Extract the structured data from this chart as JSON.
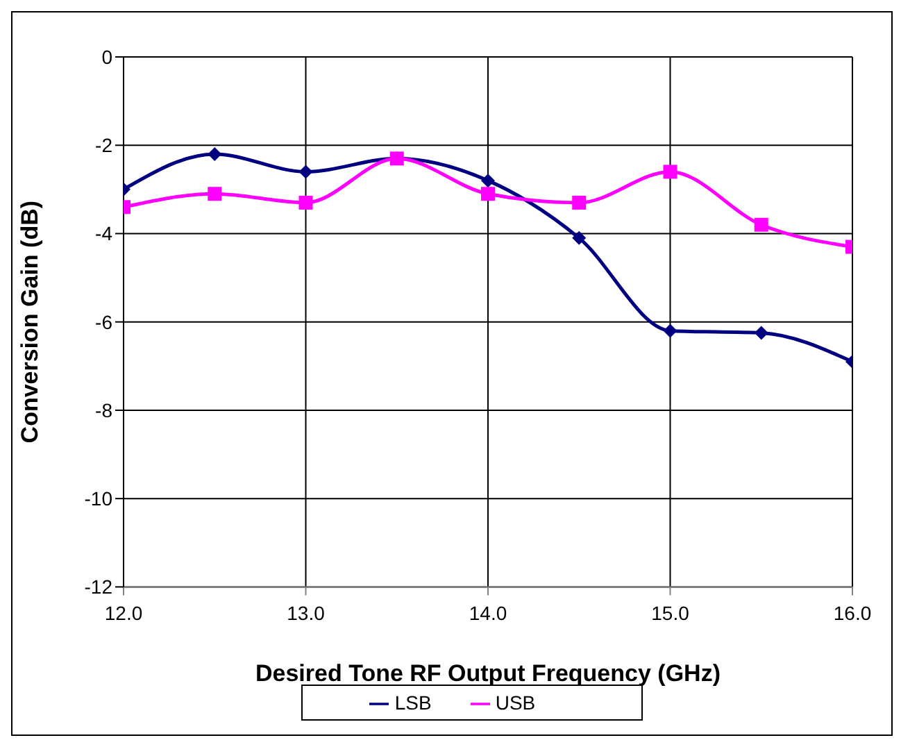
{
  "chart_data": {
    "type": "line",
    "xlabel": "Desired Tone RF Output Frequency (GHz)",
    "ylabel": "Conversion Gain (dB)",
    "x": [
      12.0,
      12.5,
      13.0,
      13.5,
      14.0,
      14.5,
      15.0,
      15.5,
      16.0
    ],
    "series": [
      {
        "name": "LSB",
        "color": "#000080",
        "marker": "diamond",
        "values": [
          -3.0,
          -2.2,
          -2.6,
          -2.3,
          -2.8,
          -4.1,
          -6.2,
          -6.25,
          -6.9
        ]
      },
      {
        "name": "USB",
        "color": "#ff00ff",
        "marker": "square",
        "values": [
          -3.4,
          -3.1,
          -3.3,
          -2.3,
          -3.1,
          -3.3,
          -2.6,
          -3.8,
          -4.3
        ]
      }
    ],
    "xlim": [
      12,
      16
    ],
    "xticks": [
      {
        "value": 12,
        "label": "12.0"
      },
      {
        "value": 13,
        "label": "13.0"
      },
      {
        "value": 14,
        "label": "14.0"
      },
      {
        "value": 15,
        "label": "15.0"
      },
      {
        "value": 16,
        "label": "16.0"
      }
    ],
    "ylim": [
      -12,
      0
    ],
    "yticks": [
      -12,
      -10,
      -8,
      -6,
      -4,
      -2,
      0
    ],
    "grid": true,
    "legend": "bottom",
    "line_style": "solid"
  }
}
